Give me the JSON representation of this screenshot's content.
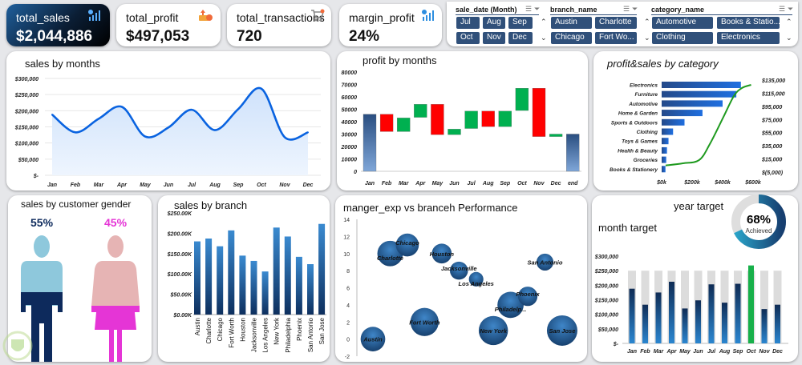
{
  "kpis": [
    {
      "label": "total_sales",
      "value": "$2,044,886",
      "icon": "chart-icon"
    },
    {
      "label": "total_profit",
      "value": "$497,053",
      "icon": "money-icon"
    },
    {
      "label": "total_transactions",
      "value": "720",
      "icon": "cart-icon"
    },
    {
      "label": "margin_profit",
      "value": "24%",
      "icon": "chart-icon"
    }
  ],
  "slicers": [
    {
      "header": "sale_date (Month)",
      "items": [
        "Jul",
        "Aug",
        "Sep",
        "Oct",
        "Nov",
        "Dec"
      ]
    },
    {
      "header": "branch_name",
      "items": [
        "Austin",
        "Charlotte",
        "Chicago",
        "Fort Wo..."
      ]
    },
    {
      "header": "category_name",
      "items": [
        "Automotive",
        "Books & Statio...",
        "Clothing",
        "Electronics"
      ]
    }
  ],
  "chart_data": [
    {
      "id": "sales_months",
      "type": "area",
      "title": "sales by months",
      "categories": [
        "Jan",
        "Feb",
        "Mar",
        "Apr",
        "May",
        "Jun",
        "Jul",
        "Aug",
        "Sep",
        "Oct",
        "Nov",
        "Dec"
      ],
      "values": [
        188000,
        133000,
        175000,
        212000,
        120000,
        148000,
        203000,
        140000,
        205000,
        268000,
        118000,
        133000
      ],
      "yticks": [
        "$300,000",
        "$250,000",
        "$200,000",
        "$150,000",
        "$100,000",
        "$50,000",
        "$-"
      ],
      "ylim": [
        0,
        300000
      ],
      "color": "#0a63e0"
    },
    {
      "id": "profit_months",
      "type": "bar",
      "subtype": "waterfall",
      "title": "profit by months",
      "categories": [
        "Jan",
        "Feb",
        "Mar",
        "Apr",
        "May",
        "Jun",
        "Jul",
        "Aug",
        "Sep",
        "Oct",
        "Nov",
        "Dec",
        "end"
      ],
      "bars": [
        [
          0,
          46000,
          "total"
        ],
        [
          46000,
          32000,
          "down"
        ],
        [
          32000,
          43000,
          "up"
        ],
        [
          43500,
          54000,
          "up"
        ],
        [
          54000,
          29500,
          "down"
        ],
        [
          29500,
          34000,
          "up"
        ],
        [
          34500,
          48500,
          "up"
        ],
        [
          48500,
          36000,
          "down"
        ],
        [
          36000,
          48500,
          "up"
        ],
        [
          49000,
          67000,
          "up"
        ],
        [
          67000,
          28000,
          "down"
        ],
        [
          28000,
          30000,
          "up"
        ],
        [
          0,
          30000,
          "total"
        ]
      ],
      "yticks": [
        "80000",
        "70000",
        "60000",
        "50000",
        "40000",
        "30000",
        "20000",
        "10000",
        "0"
      ],
      "ylim": [
        0,
        80000
      ],
      "colors": {
        "up": "#00b050",
        "down": "#ff0000",
        "total": "#2f5a8f"
      }
    },
    {
      "id": "category",
      "type": "bar",
      "orientation": "horizontal",
      "title": "profit&sales by category",
      "categories": [
        "Electronics",
        "Furniture",
        "Automotive",
        "Home & Garden",
        "Sports & Outdoors",
        "Clothing",
        "Toys & Games",
        "Health & Beauty",
        "Groceries",
        "Books & Stationery"
      ],
      "sales": [
        520000,
        490000,
        400000,
        268000,
        150000,
        75000,
        45000,
        35000,
        30000,
        25000
      ],
      "xticks": [
        "$0k",
        "$200k",
        "$400k",
        "$600k"
      ],
      "xlim": [
        0,
        600000
      ],
      "y2ticks": [
        "$135,000",
        "$115,000",
        "$95,000",
        "$75,000",
        "$55,000",
        "$35,000",
        "$15,000",
        "$(5,000)"
      ],
      "y2lim": [
        -5000,
        135000
      ],
      "profit_curve": [
        [
          26000,
          5100
        ],
        [
          140000,
          8400
        ],
        [
          246000,
          13300
        ],
        [
          316000,
          37600
        ],
        [
          404000,
          78200
        ],
        [
          474000,
          110700
        ],
        [
          526000,
          122800
        ],
        [
          587000,
          127700
        ]
      ],
      "bar_color": "#1f6fe0",
      "line_color": "#1f9a1f"
    },
    {
      "id": "branch",
      "type": "bar",
      "title": "sales by branch",
      "categories": [
        "Austin",
        "Charlotte",
        "Chicago",
        "Fort Worth",
        "Houston",
        "Jacksonville",
        "Los Angeles",
        "New York",
        "Philadelphia",
        "Phoenix",
        "San Antonio",
        "San Jose"
      ],
      "values": [
        180,
        187,
        168,
        207,
        145,
        132,
        106,
        214,
        192,
        142,
        124,
        223
      ],
      "unit": "K",
      "yticks": [
        "$250.00K",
        "$200.00K",
        "$150.00K",
        "$100.00K",
        "$50.00K",
        "$0.00K"
      ],
      "ylim": [
        0,
        250
      ]
    },
    {
      "id": "bubble",
      "type": "scatter",
      "subtype": "bubble",
      "title": "manger_exp vs branceh Performance",
      "labels": [
        "Austin",
        "Charlotte",
        "Chicago",
        "Fort Worth",
        "Houston",
        "Jacksonville",
        "Los Angeles",
        "New York",
        "Philadelp...",
        "Phoenix",
        "San Antonio",
        "San Jose"
      ],
      "y": [
        0,
        10,
        11,
        2,
        10,
        8,
        7,
        1,
        4,
        5,
        9,
        1
      ],
      "size": [
        180,
        187,
        168,
        207,
        145,
        132,
        106,
        214,
        192,
        142,
        124,
        223
      ],
      "yticks": [
        "14",
        "12",
        "10",
        "8",
        "6",
        "4",
        "2",
        "0",
        "-2"
      ],
      "ylim": [
        -2,
        14
      ]
    },
    {
      "id": "month_target",
      "type": "bar",
      "title": "month target",
      "categories": [
        "Jan",
        "Feb",
        "Mar",
        "Apr",
        "May",
        "Jun",
        "Jul",
        "Aug",
        "Sep",
        "Oct",
        "Nov",
        "Dec"
      ],
      "target": 250000,
      "values": [
        188000,
        133000,
        175000,
        212000,
        120000,
        148000,
        203000,
        140000,
        205000,
        268000,
        118000,
        133000
      ],
      "yticks": [
        "$300,000",
        "$250,000",
        "$200,000",
        "$150,000",
        "$100,000",
        "$50,000",
        "$-"
      ],
      "ylim": [
        0,
        300000
      ],
      "colors": {
        "actual": "#1d4f8a",
        "over": "#17b04a",
        "target": "#dcdcdc"
      }
    }
  ],
  "gender": {
    "title": "sales by customer gender",
    "male_pct": "55%",
    "female_pct": "45%",
    "male_color": "#0d2a5c",
    "female_color": "#e535d6"
  },
  "year_target": {
    "title": "year target",
    "value": "68%",
    "caption": "Achieved",
    "fraction": 0.68
  }
}
